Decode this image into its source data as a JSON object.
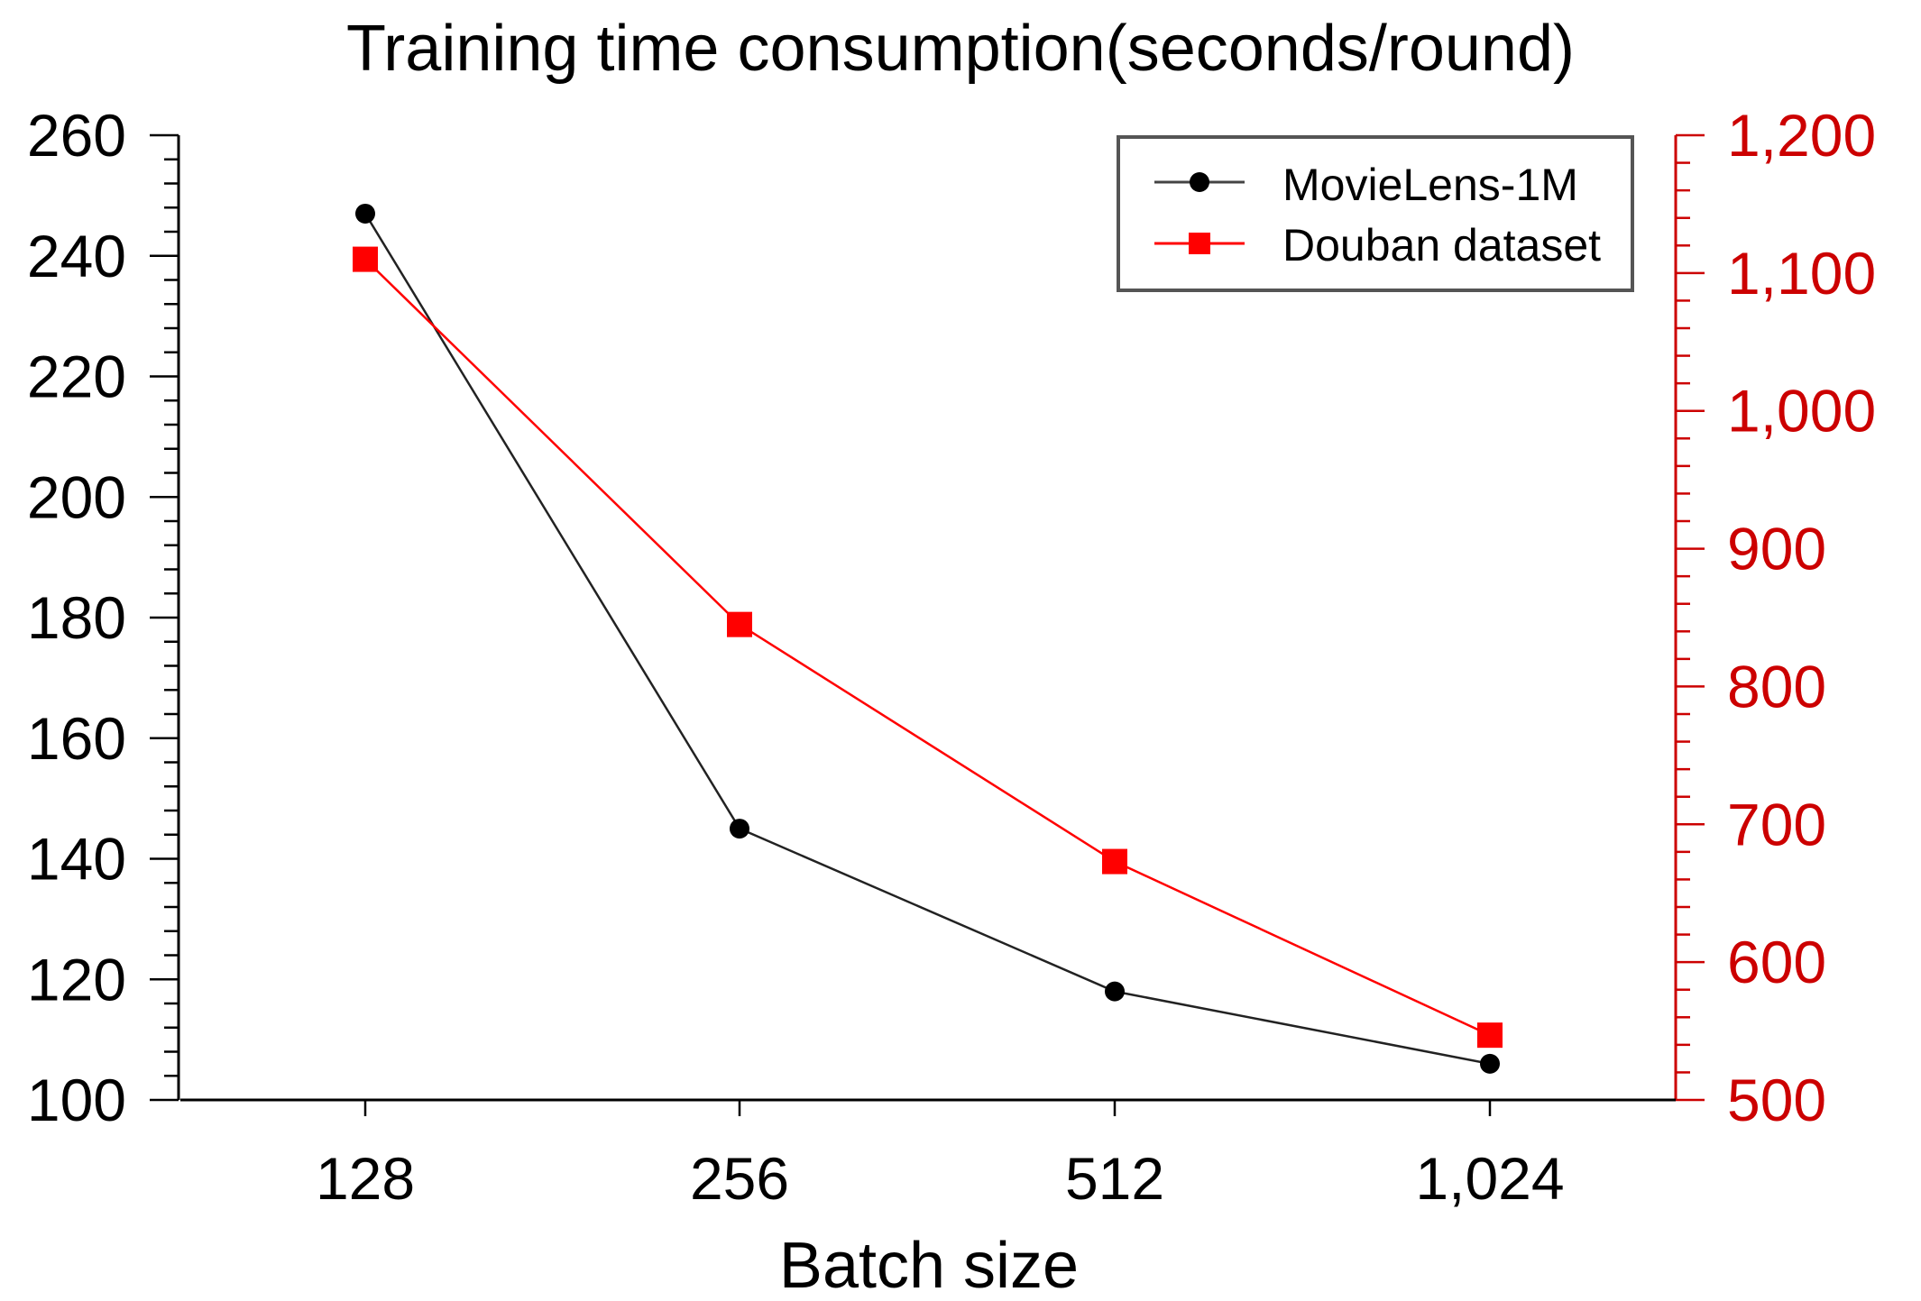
{
  "chart_data": {
    "type": "line",
    "title": "Training time consumption(seconds/round)",
    "xlabel": "Batch size",
    "ylabel": "",
    "ylabel_right": "",
    "categories": [
      "128",
      "256",
      "512",
      "1,024"
    ],
    "ylim": [
      100,
      260
    ],
    "yticks": [
      100,
      120,
      140,
      160,
      180,
      200,
      220,
      240,
      260
    ],
    "ytick_labels": [
      "100",
      "120",
      "140",
      "160",
      "180",
      "200",
      "220",
      "240",
      "260"
    ],
    "ylim_right": [
      500,
      1200
    ],
    "yticks_right": [
      500,
      600,
      700,
      800,
      900,
      1000,
      1100,
      1200
    ],
    "ytick_labels_right": [
      "500",
      "600",
      "700",
      "800",
      "900",
      "1,000",
      "1,100",
      "1,200"
    ],
    "legend_position": "top-right",
    "grid": false,
    "series": [
      {
        "name": "MovieLens-1M",
        "axis": "left",
        "color": "#000000",
        "line_color": "#222222",
        "marker": "circle",
        "values": [
          247,
          145,
          118,
          106
        ]
      },
      {
        "name": "Douban dataset",
        "axis": "right",
        "color": "#ff0000",
        "line_color": "#ff0000",
        "marker": "square",
        "values": [
          1110,
          845,
          673,
          547
        ]
      }
    ],
    "colors": {
      "axis": "#000000",
      "right_axis": "#cc0000",
      "legend_border": "#555555"
    }
  }
}
